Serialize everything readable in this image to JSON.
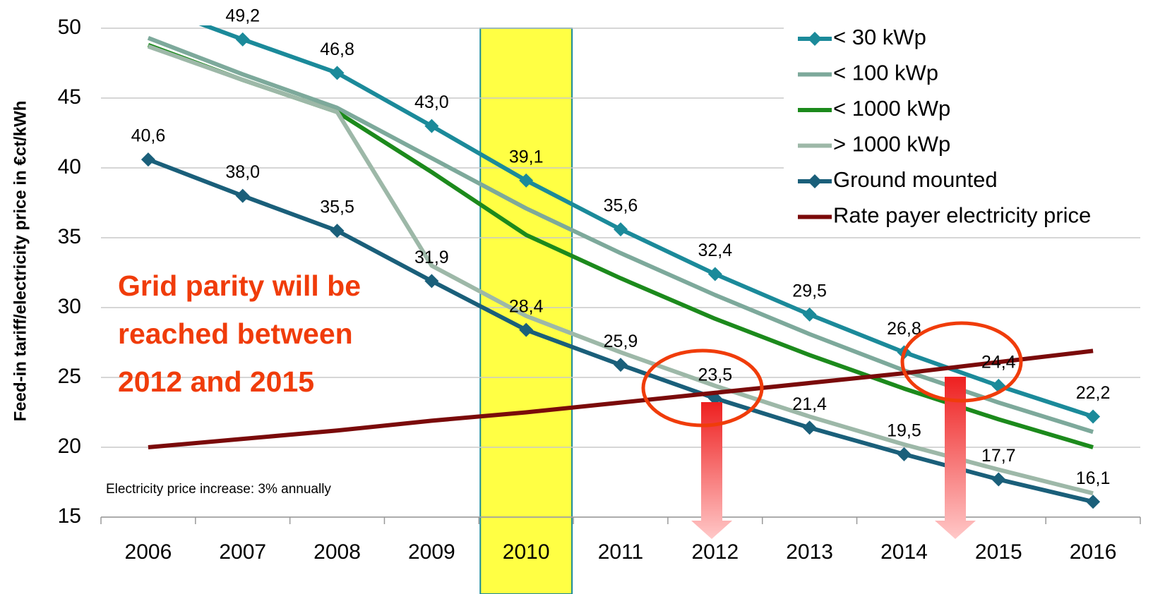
{
  "chart_data": {
    "type": "line",
    "y_label": "Feed-in tariff/electricity price in €ct/kWh",
    "categories": [
      "2006",
      "2007",
      "2008",
      "2009",
      "2010",
      "2011",
      "2012",
      "2013",
      "2014",
      "2015",
      "2016"
    ],
    "ylim": [
      15,
      50
    ],
    "yticks": [
      15,
      20,
      25,
      30,
      35,
      40,
      45,
      50
    ],
    "grid": true,
    "legend": "right",
    "highlight": "2010",
    "highlight_color": "#ffff44",
    "annotation_lines": [
      "Grid parity will be",
      "reached between",
      "2012 and 2015"
    ],
    "note": "Electricity price increase: 3% annually",
    "series": [
      {
        "name": "< 30 kWp",
        "color": "#1b8a9a",
        "marker": "diamond",
        "values": [
          51.7,
          49.2,
          46.8,
          43.0,
          39.1,
          35.6,
          32.4,
          29.5,
          26.8,
          24.4,
          22.2
        ],
        "value_labels": [
          null,
          "49,2",
          "46,8",
          "43,0",
          "39,1",
          "35,6",
          "32,4",
          "29,5",
          "26,8",
          "24,4",
          "22,2"
        ]
      },
      {
        "name": "< 100 kWp",
        "color": "#7da99b",
        "values": [
          49.3,
          46.7,
          44.3,
          40.7,
          37.1,
          33.9,
          30.9,
          28.1,
          25.5,
          23.2,
          21.1
        ]
      },
      {
        "name": "< 1000 kWp",
        "color": "#1c8a1c",
        "values": [
          48.8,
          46.3,
          44.0,
          39.7,
          35.2,
          32.1,
          29.2,
          26.6,
          24.2,
          22.0,
          20.0
        ]
      },
      {
        "name": "> 1000 kWp",
        "color": "#9db8a8",
        "values": [
          48.7,
          46.3,
          44.0,
          33.0,
          29.4,
          26.8,
          24.4,
          22.2,
          20.2,
          18.4,
          16.7
        ]
      },
      {
        "name": "Ground mounted",
        "color": "#1a5f7a",
        "marker": "diamond",
        "values": [
          40.6,
          38.0,
          35.5,
          31.9,
          28.4,
          25.9,
          23.5,
          21.4,
          19.5,
          17.7,
          16.1
        ],
        "value_labels": [
          "40,6",
          "38,0",
          "35,5",
          "31,9",
          "28,4",
          "25,9",
          "23,5",
          "21,4",
          "19,5",
          "17,7",
          "16,1"
        ]
      },
      {
        "name": "Rate payer electricity price",
        "color": "#7a0a0a",
        "values": [
          20.0,
          20.6,
          21.2,
          21.9,
          22.5,
          23.2,
          23.9,
          24.6,
          25.3,
          26.1,
          26.9
        ]
      }
    ]
  }
}
